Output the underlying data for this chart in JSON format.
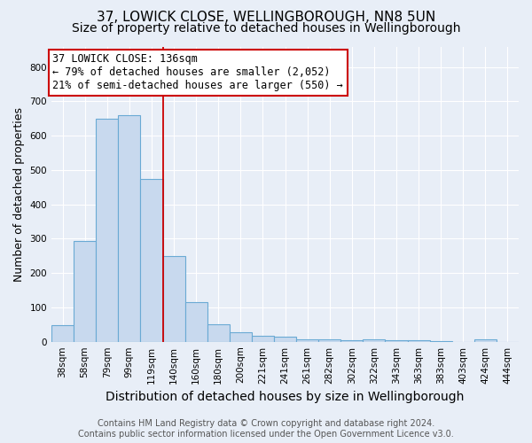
{
  "title": "37, LOWICK CLOSE, WELLINGBOROUGH, NN8 5UN",
  "subtitle": "Size of property relative to detached houses in Wellingborough",
  "xlabel": "Distribution of detached houses by size in Wellingborough",
  "ylabel": "Number of detached properties",
  "footer_line1": "Contains HM Land Registry data © Crown copyright and database right 2024.",
  "footer_line2": "Contains public sector information licensed under the Open Government Licence v3.0.",
  "categories": [
    "38sqm",
    "58sqm",
    "79sqm",
    "99sqm",
    "119sqm",
    "140sqm",
    "160sqm",
    "180sqm",
    "200sqm",
    "221sqm",
    "241sqm",
    "261sqm",
    "282sqm",
    "302sqm",
    "322sqm",
    "343sqm",
    "363sqm",
    "383sqm",
    "403sqm",
    "424sqm",
    "444sqm"
  ],
  "values": [
    48,
    293,
    650,
    660,
    475,
    250,
    115,
    50,
    28,
    18,
    15,
    8,
    7,
    5,
    8,
    5,
    5,
    3,
    0,
    8,
    0
  ],
  "bar_color": "#c8d9ee",
  "bar_edge_color": "#6aaad4",
  "bar_edge_width": 0.8,
  "vline_x": 4.5,
  "vline_color": "#cc0000",
  "vline_lw": 1.3,
  "annotation_line1": "37 LOWICK CLOSE: 136sqm",
  "annotation_line2": "← 79% of detached houses are smaller (2,052)",
  "annotation_line3": "21% of semi-detached houses are larger (550) →",
  "annotation_box_color": "white",
  "annotation_box_edge_color": "#cc0000",
  "ylim": [
    0,
    860
  ],
  "yticks": [
    0,
    100,
    200,
    300,
    400,
    500,
    600,
    700,
    800
  ],
  "background_color": "#e8eef7",
  "plot_bg_color": "#e8eef7",
  "title_fontsize": 11,
  "subtitle_fontsize": 10,
  "xlabel_fontsize": 10,
  "ylabel_fontsize": 9,
  "tick_fontsize": 7.5,
  "annotation_fontsize": 8.5,
  "footer_fontsize": 7
}
